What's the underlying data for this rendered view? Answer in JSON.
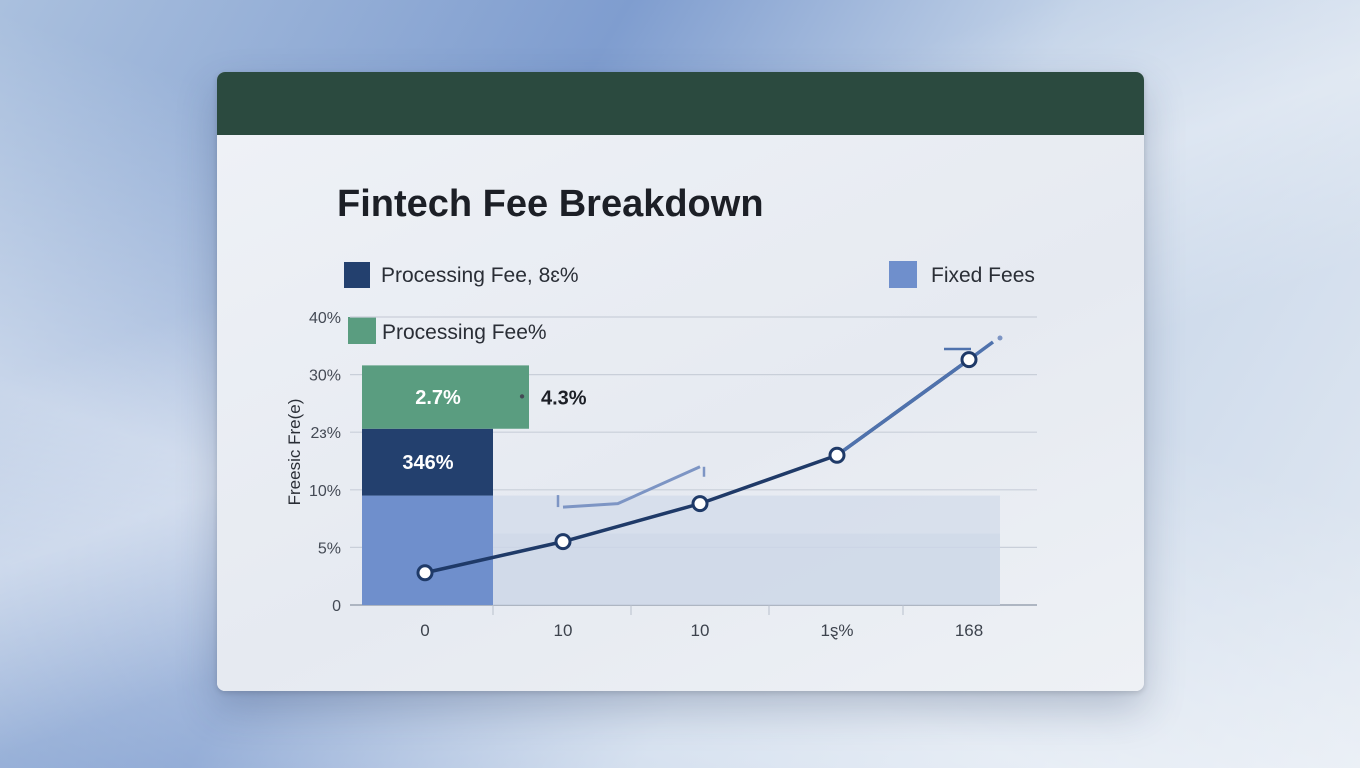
{
  "chart_data": {
    "type": "bar",
    "title": "Fintech Fee Breakdown",
    "ylabel": "Freesic Fre(e)",
    "xlabel": "",
    "y_ticks": [
      "0",
      "5%",
      "10%",
      "2ɜ%",
      "30%",
      "40%"
    ],
    "y_tick_values": [
      0,
      5,
      10,
      15,
      20,
      25
    ],
    "x_ticks": [
      "0",
      "10",
      "10",
      "1ȿ%",
      "168"
    ],
    "ylim": [
      0,
      25
    ],
    "grid": true,
    "legend": [
      {
        "label": "Processing Fee, 8ɛ%",
        "color": "#23406e",
        "placement": "top-left"
      },
      {
        "label": "Fixed Fees",
        "color": "#6f8fcc",
        "placement": "top-right"
      },
      {
        "label": "Processing Fee%",
        "color": "#5a9d80",
        "placement": "left"
      }
    ],
    "stacked_bar": {
      "segments": [
        {
          "name": "Fixed Fees",
          "value": 9.5,
          "color": "#6f8fcc",
          "label": ""
        },
        {
          "name": "Processing Fee, 8ɛ%",
          "value": 5.8,
          "color": "#23406e",
          "label": "346%"
        },
        {
          "name": "Processing Fee%",
          "value": 5.5,
          "color": "#5a9d80",
          "label": "2.7%"
        }
      ]
    },
    "background_area": {
      "value": 9.5,
      "color": "#d2dbe9"
    },
    "series": [
      {
        "color": "#1f3a68",
        "x_index": [
          0,
          1,
          2,
          3,
          4
        ],
        "values": [
          2.8,
          5.5,
          8.8,
          13.0,
          21.3
        ]
      },
      {
        "color": "#7d95c4",
        "x_index": [
          1,
          1.4,
          2
        ],
        "values": [
          8.5,
          8.8,
          12.0
        ]
      }
    ],
    "annotations": [
      {
        "text": "4.3%",
        "at_value": 18.0
      }
    ]
  }
}
